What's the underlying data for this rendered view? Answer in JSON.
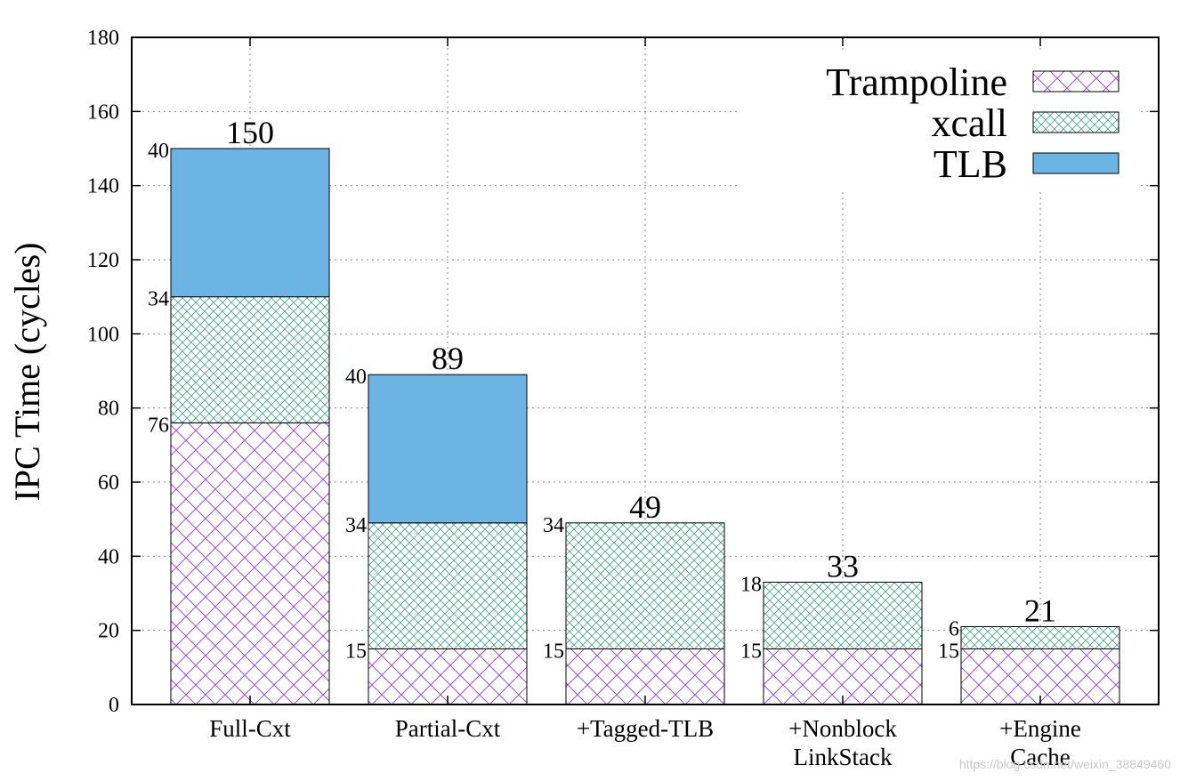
{
  "chart_data": {
    "type": "bar",
    "stacked": true,
    "categories": [
      "Full-Cxt",
      "Partial-Cxt",
      "+Tagged-TLB",
      "+Nonblock\nLinkStack",
      "+Engine\nCache"
    ],
    "series": [
      {
        "name": "Trampoline",
        "values": [
          76,
          15,
          15,
          15,
          15
        ],
        "pattern": "crosshatch",
        "color": "#9b4fd6"
      },
      {
        "name": "xcall",
        "values": [
          34,
          34,
          34,
          18,
          6
        ],
        "pattern": "crosshatch-fine",
        "color": "#4aa88a"
      },
      {
        "name": "TLB",
        "values": [
          40,
          40,
          0,
          0,
          0
        ],
        "pattern": "solid",
        "color": "#6cb4e4"
      }
    ],
    "segment_labels": [
      [
        "76",
        "15",
        "15",
        "15",
        "15"
      ],
      [
        "34",
        "34",
        "34",
        "18",
        "6"
      ],
      [
        "40",
        "40",
        "",
        "",
        ""
      ]
    ],
    "totals": [
      "150",
      "89",
      "49",
      "33",
      "21"
    ],
    "ylabel": "IPC Time (cycles)",
    "xlabel": "",
    "ylim": [
      0,
      180
    ],
    "yticks": [
      0,
      20,
      40,
      60,
      80,
      100,
      120,
      140,
      160,
      180
    ],
    "grid": true,
    "legend_position": "top-right"
  },
  "watermark": "https://blog.csdn.net/weixin_38849460"
}
